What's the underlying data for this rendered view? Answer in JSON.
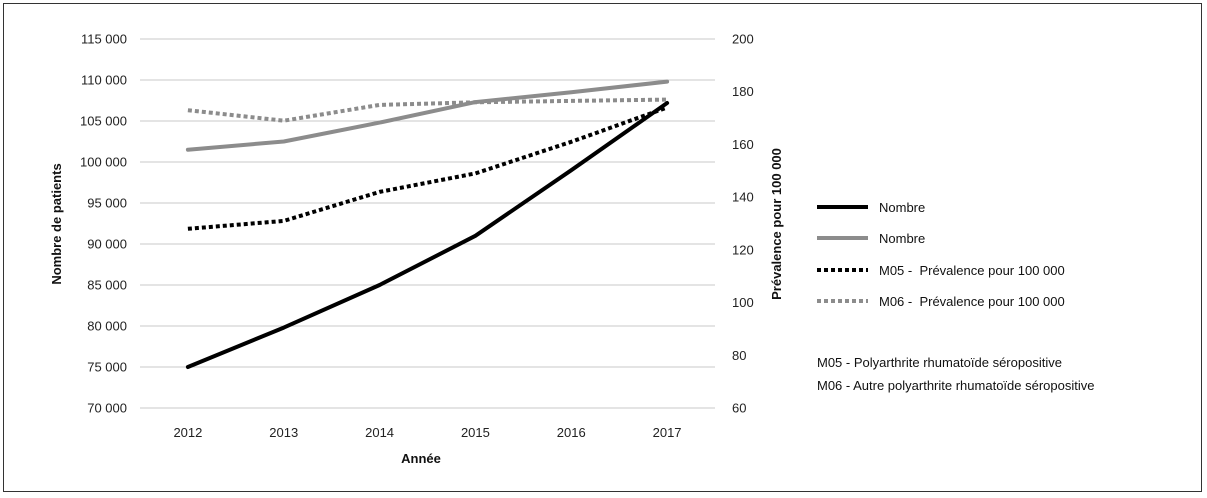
{
  "chart_data": {
    "type": "line",
    "xlabel": "Année",
    "ylabel_left": "Nombre de patients",
    "ylabel_right": "Prévalence pour 100 000",
    "categories": [
      "2012",
      "2013",
      "2014",
      "2015",
      "2016",
      "2017"
    ],
    "y_left": {
      "range": [
        70000,
        115000
      ],
      "step": 5000,
      "tick_labels": [
        "70 000",
        "75 000",
        "80 000",
        "85 000",
        "90 000",
        "95 000",
        "100 000",
        "105 000",
        "110 000",
        "115 000"
      ]
    },
    "y_right": {
      "range": [
        60,
        200
      ],
      "step": 20,
      "tick_labels": [
        "60",
        "80",
        "100",
        "120",
        "140",
        "160",
        "180",
        "200"
      ]
    },
    "grid": true,
    "legend_position": "right",
    "series": [
      {
        "name": "Nombre",
        "axis": "left",
        "color": "#000000",
        "style": "solid",
        "values": [
          75000,
          79800,
          85000,
          91000,
          99000,
          107200
        ]
      },
      {
        "name": "Nombre",
        "axis": "left",
        "color": "#8c8c8c",
        "style": "solid",
        "values": [
          101500,
          102500,
          104800,
          107300,
          108500,
          109800
        ]
      },
      {
        "name": "M05 -  Prévalence pour 100 000",
        "axis": "right",
        "color": "#000000",
        "style": "dotted",
        "values": [
          128,
          131,
          142,
          149,
          161,
          174
        ]
      },
      {
        "name": "M06 -  Prévalence pour 100 000",
        "axis": "right",
        "color": "#8c8c8c",
        "style": "dotted",
        "values": [
          173,
          169,
          175,
          176,
          176.5,
          177
        ]
      }
    ],
    "notes": [
      "M05 - Polyarthrite rhumatoïde séropositive",
      "M06 - Autre polyarthrite rhumatoïde séropositive"
    ]
  }
}
